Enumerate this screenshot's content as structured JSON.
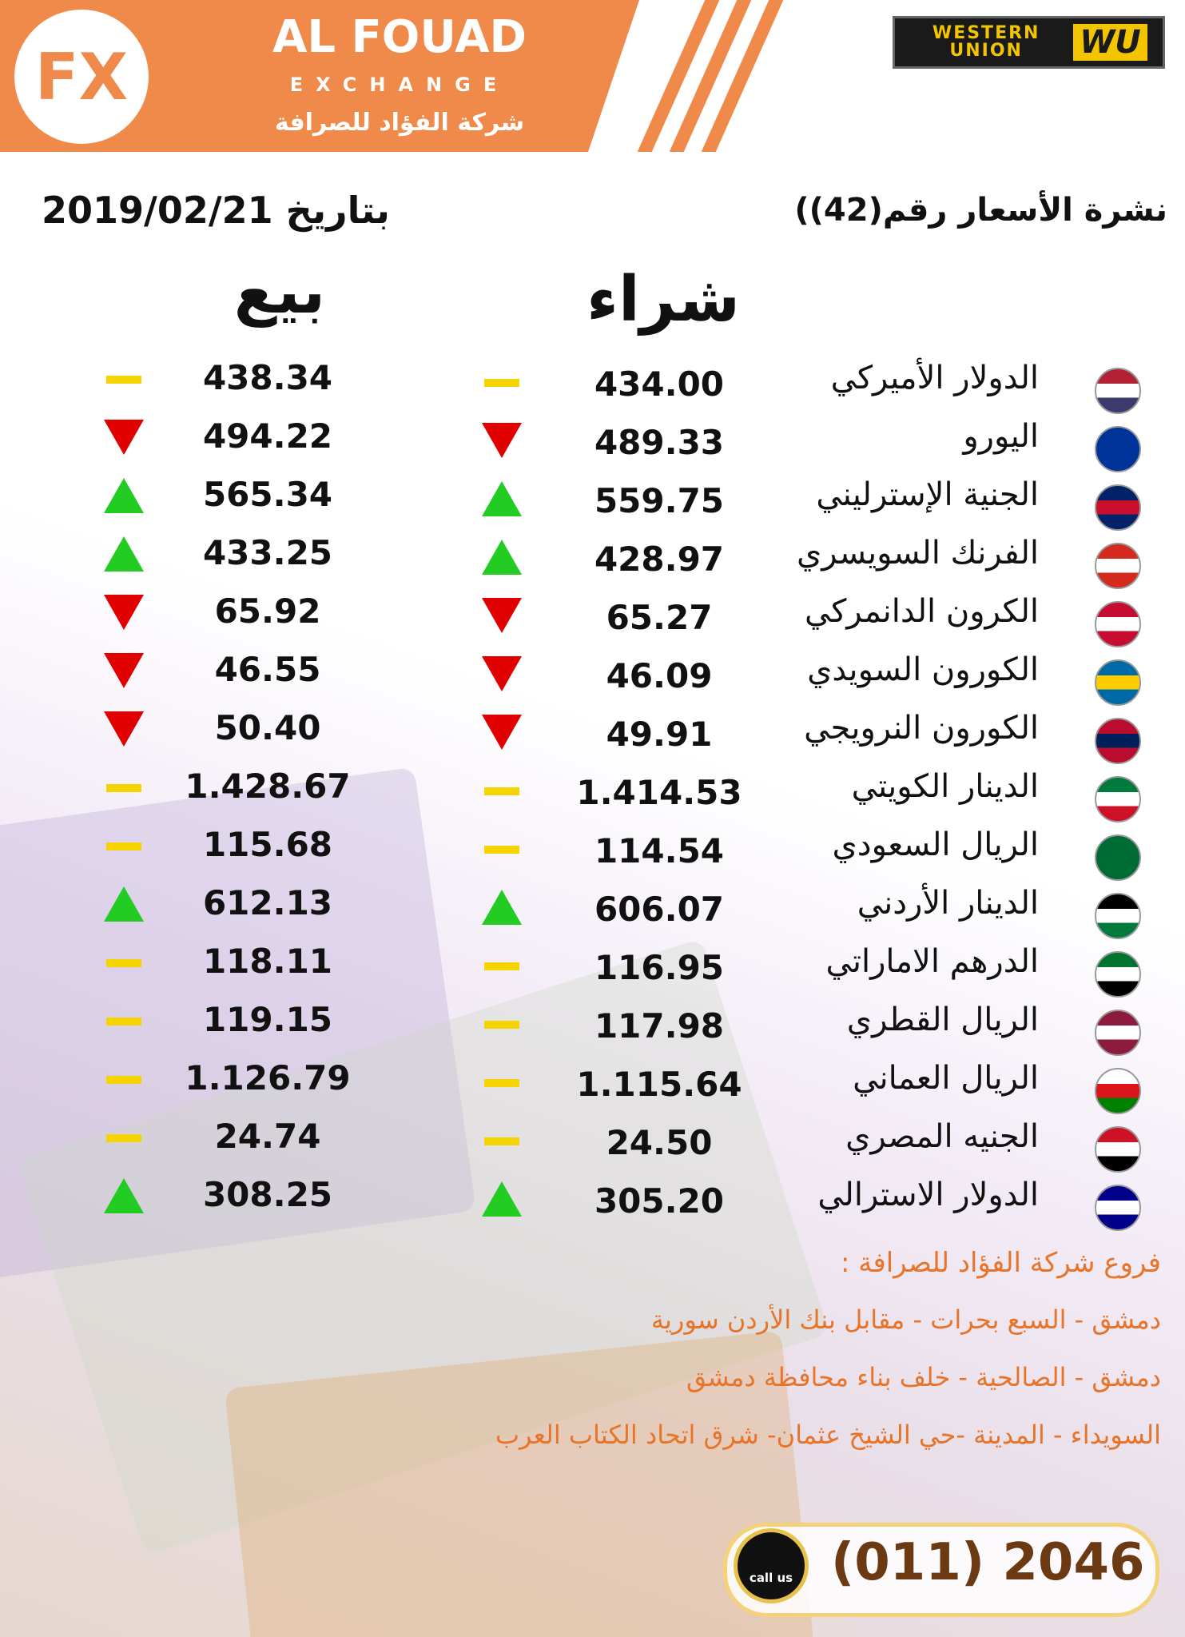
{
  "header": {
    "brand": "AL FOUAD",
    "subbrand": "EXCHANGE",
    "arabic_brand": "شركة الفؤاد للصرافة",
    "logo": "FX",
    "partner": "WESTERN UNION",
    "partner_mark": "WU"
  },
  "bulletin": "نشرة الأسعار رقم(42))",
  "date": "بتاريخ 2019/02/21",
  "columns": {
    "buy": "شراء",
    "sell": "بيع"
  },
  "colors": {
    "up": "#22cc22",
    "down": "#e00000",
    "same": "#f5d400"
  },
  "table": {
    "rows": [
      {
        "name": "الدولار الأميركي",
        "buy": "434.00",
        "buy_trend": "same",
        "sell": "438.34",
        "sell_trend": "same",
        "flag": [
          "#b22234",
          "#ffffff",
          "#3c3b6e"
        ]
      },
      {
        "name": "اليورو",
        "buy": "489.33",
        "buy_trend": "down",
        "sell": "494.22",
        "sell_trend": "down",
        "flag": [
          "#003399",
          "#003399",
          "#003399"
        ]
      },
      {
        "name": "الجنية الإسترليني",
        "buy": "559.75",
        "buy_trend": "up",
        "sell": "565.34",
        "sell_trend": "up",
        "flag": [
          "#012169",
          "#c8102e",
          "#012169"
        ]
      },
      {
        "name": "الفرنك السويسري",
        "buy": "428.97",
        "buy_trend": "up",
        "sell": "433.25",
        "sell_trend": "up",
        "flag": [
          "#d52b1e",
          "#ffffff",
          "#d52b1e"
        ]
      },
      {
        "name": "الكرون الدانمركي",
        "buy": "65.27",
        "buy_trend": "down",
        "sell": "65.92",
        "sell_trend": "down",
        "flag": [
          "#c60c30",
          "#ffffff",
          "#c60c30"
        ]
      },
      {
        "name": "الكورون السويدي",
        "buy": "46.09",
        "buy_trend": "down",
        "sell": "46.55",
        "sell_trend": "down",
        "flag": [
          "#006aa7",
          "#fecc00",
          "#006aa7"
        ]
      },
      {
        "name": "الكورون النرويجي",
        "buy": "49.91",
        "buy_trend": "down",
        "sell": "50.40",
        "sell_trend": "down",
        "flag": [
          "#ba0c2f",
          "#00205b",
          "#ba0c2f"
        ]
      },
      {
        "name": "الدينار الكويتي",
        "buy": "1.414.53",
        "buy_trend": "same",
        "sell": "1.428.67",
        "sell_trend": "same",
        "flag": [
          "#007a3d",
          "#ffffff",
          "#ce1126"
        ]
      },
      {
        "name": "الريال السعودي",
        "buy": "114.54",
        "buy_trend": "same",
        "sell": "115.68",
        "sell_trend": "same",
        "flag": [
          "#006c35",
          "#006c35",
          "#006c35"
        ]
      },
      {
        "name": "الدينار الأردني",
        "buy": "606.07",
        "buy_trend": "up",
        "sell": "612.13",
        "sell_trend": "up",
        "flag": [
          "#000000",
          "#ffffff",
          "#007a3d"
        ]
      },
      {
        "name": "الدرهم الاماراتي",
        "buy": "116.95",
        "buy_trend": "same",
        "sell": "118.11",
        "sell_trend": "same",
        "flag": [
          "#00732f",
          "#ffffff",
          "#000000"
        ]
      },
      {
        "name": "الريال القطري",
        "buy": "117.98",
        "buy_trend": "same",
        "sell": "119.15",
        "sell_trend": "same",
        "flag": [
          "#8d1b3d",
          "#ffffff",
          "#8d1b3d"
        ]
      },
      {
        "name": "الريال العماني",
        "buy": "1.115.64",
        "buy_trend": "same",
        "sell": "1.126.79",
        "sell_trend": "same",
        "flag": [
          "#ffffff",
          "#db161b",
          "#008000"
        ]
      },
      {
        "name": "الجنيه المصري",
        "buy": "24.50",
        "buy_trend": "same",
        "sell": "24.74",
        "sell_trend": "same",
        "flag": [
          "#ce1126",
          "#ffffff",
          "#000000"
        ]
      },
      {
        "name": "الدولار الاسترالي",
        "buy": "305.20",
        "buy_trend": "up",
        "sell": "308.25",
        "sell_trend": "up",
        "flag": [
          "#00008b",
          "#ffffff",
          "#00008b"
        ]
      }
    ]
  },
  "branches": {
    "title": "فروع شركة الفؤاد للصرافة :",
    "items": [
      "دمشق - السبع بحرات - مقابل بنك الأردن سورية",
      "دمشق - الصالحية - خلف بناء محافظة دمشق",
      "السويداء - المدينة -حي الشيخ عثمان- شرق اتحاد الكتاب العرب"
    ]
  },
  "contact": {
    "button": "call us",
    "phone": "(011) 2046"
  }
}
